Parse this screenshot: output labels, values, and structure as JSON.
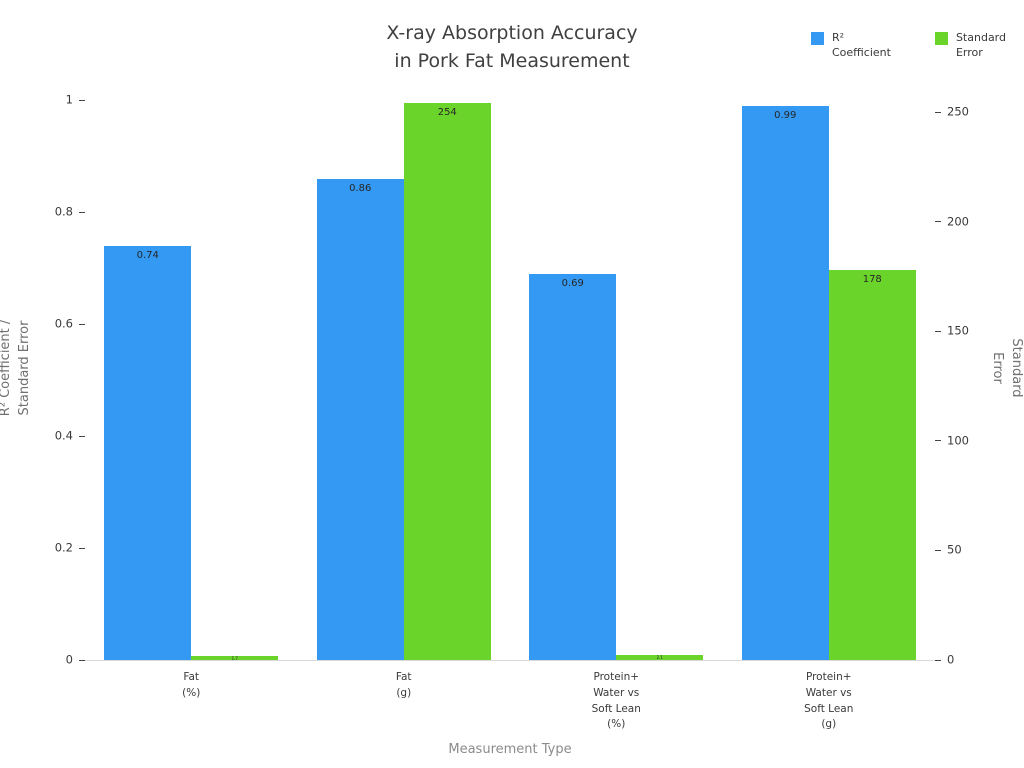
{
  "chart_data": {
    "type": "bar",
    "title": "X-ray Absorption Accuracy\nin Pork Fat Measurement",
    "xlabel": "Measurement Type",
    "ylabel_left": "R² Coefficient /\nStandard Error",
    "ylabel_right": "Standard Error",
    "categories": [
      "Fat\n(%)",
      "Fat\n(g)",
      "Protein+\nWater vs\nSoft Lean\n(%)",
      "Protein+\nWater vs\nSoft Lean\n(g)"
    ],
    "series": [
      {
        "name": "R²\nCoefficient",
        "axis": "left",
        "color": "#3399f3",
        "values": [
          0.74,
          0.86,
          0.69,
          0.99
        ],
        "labels": [
          "0.74",
          "0.86",
          "0.69",
          "0.99"
        ]
      },
      {
        "name": "Standard\nError",
        "axis": "right",
        "color": "#6bd42b",
        "values": [
          1.7,
          254,
          2.1,
          178
        ],
        "labels": [
          "1.7",
          "254",
          "2.1",
          "178"
        ]
      }
    ],
    "yticks_left": [
      0,
      0.2,
      0.4,
      0.6,
      0.8,
      1
    ],
    "yticks_right": [
      0,
      50,
      100,
      150,
      200,
      250
    ],
    "ylim_left": [
      0,
      1.045
    ],
    "ylim_right": [
      0,
      267
    ],
    "legend_position": "top-right",
    "grid": false
  }
}
